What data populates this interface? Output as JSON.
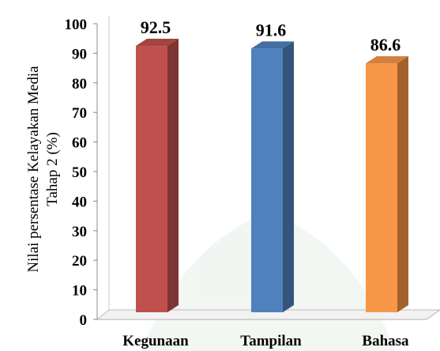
{
  "chart_data": {
    "type": "bar",
    "categories": [
      "Kegunaan",
      "Tampilan",
      "Bahasa"
    ],
    "values": [
      92.5,
      91.6,
      86.6
    ],
    "data_labels": [
      "92.5",
      "91.6",
      "86.6"
    ],
    "bar_colors": [
      "#c0504d",
      "#4f81bd",
      "#f79646"
    ],
    "ylabel_lines": [
      "Nilai persentase Kelayakan Media",
      "Tahap 2 (%)"
    ],
    "ylim": [
      0,
      100
    ],
    "yticks": [
      "0",
      "10",
      "20",
      "30",
      "40",
      "50",
      "60",
      "70",
      "80",
      "90",
      "100"
    ],
    "grid": false,
    "legend": "none",
    "style": "3d-bar"
  }
}
